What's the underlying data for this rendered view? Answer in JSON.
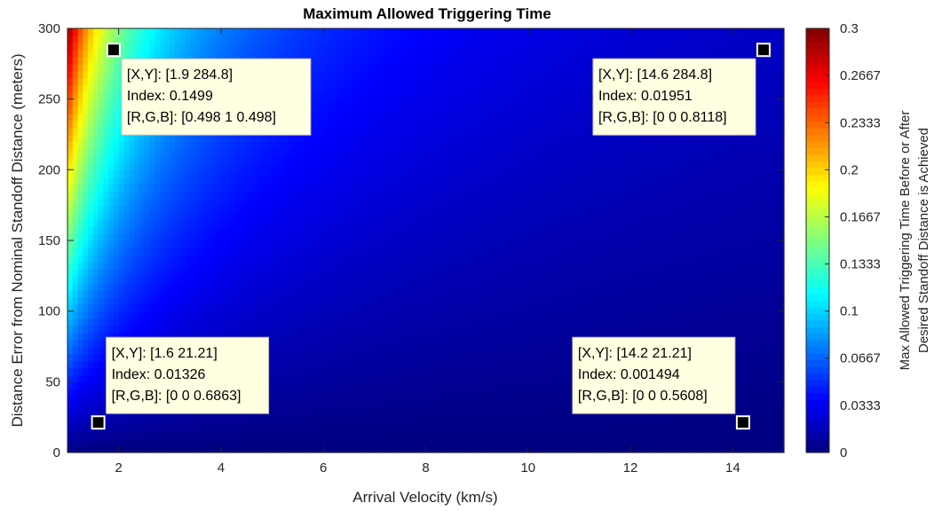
{
  "chart_data": {
    "type": "heatmap",
    "title": "Maximum Allowed Triggering Time",
    "xlabel": "Arrival Velocity (km/s)",
    "ylabel": "Distance Error from Nominal Standoff Distance (meters)",
    "colorbar_label": [
      "Max Allowed Triggering Time Before or After",
      "Desired Standoff Distance is Achieved"
    ],
    "colormap": "jet",
    "xlim": [
      1,
      15
    ],
    "ylim": [
      0,
      300
    ],
    "clim": [
      0,
      0.3
    ],
    "x_ticks": [
      2,
      4,
      6,
      8,
      10,
      12,
      14
    ],
    "x_tick_labels": [
      "2",
      "4",
      "6",
      "8",
      "10",
      "12",
      "14"
    ],
    "y_ticks": [
      0,
      50,
      100,
      150,
      200,
      250,
      300
    ],
    "y_tick_labels": [
      "0",
      "50",
      "100",
      "150",
      "200",
      "250",
      "300"
    ],
    "colorbar_ticks": [
      0,
      0.0333,
      0.0667,
      0.1,
      0.1333,
      0.1667,
      0.2,
      0.2333,
      0.2667,
      0.3
    ],
    "colorbar_tick_labels": [
      "0",
      "0.0333",
      "0.0667",
      "0.1",
      "0.1333",
      "0.1667",
      "0.2",
      "0.2333",
      "0.2667",
      "0.3"
    ],
    "datatips": [
      {
        "x": 1.9,
        "y": 284.8,
        "lines": [
          "[X,Y]: [1.9 284.8]",
          "Index: 0.1499",
          "[R,G,B]: [0.498 1 0.498]"
        ],
        "box": "below-right"
      },
      {
        "x": 14.6,
        "y": 284.8,
        "lines": [
          "[X,Y]: [14.6 284.8]",
          "Index: 0.01951",
          "[R,G,B]: [0 0 0.8118]"
        ],
        "box": "below-left"
      },
      {
        "x": 1.6,
        "y": 21.21,
        "lines": [
          "[X,Y]: [1.6 21.21]",
          "Index: 0.01326",
          "[R,G,B]: [0 0 0.6863]"
        ],
        "box": "above-right"
      },
      {
        "x": 14.2,
        "y": 21.21,
        "lines": [
          "[X,Y]: [14.2 21.21]",
          "Index: 0.001494",
          "[R,G,B]: [0 0 0.5608]"
        ],
        "box": "above-left"
      }
    ]
  }
}
